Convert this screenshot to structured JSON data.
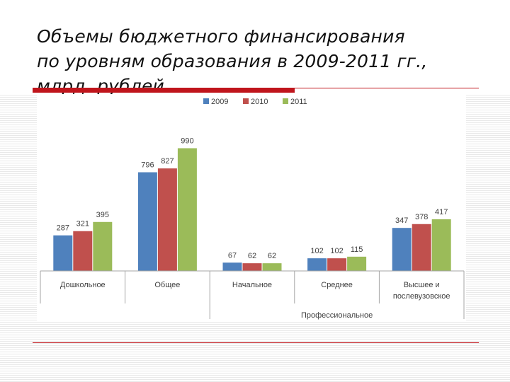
{
  "slide": {
    "title_lines": [
      "Объемы бюджетного финансирования",
      "по уровням образования в 2009-2011 гг.,",
      "млрд. рублей"
    ]
  },
  "chart_data": {
    "type": "bar",
    "categories": [
      "Дошкольное",
      "Общее",
      "Начальное",
      "Среднее",
      "Высшее и послевузовское"
    ],
    "category_label_lines": [
      [
        "Дошкольное"
      ],
      [
        "Общее"
      ],
      [
        "Начальное"
      ],
      [
        "Среднее"
      ],
      [
        "Высшее и",
        "послевузовское"
      ]
    ],
    "group_label": "Профессиональное",
    "group_span": [
      "Начальное",
      "Высшее и послевузовское"
    ],
    "series": [
      {
        "name": "2009",
        "color": "#4f81bd",
        "values": [
          287,
          796,
          67,
          102,
          347
        ]
      },
      {
        "name": "2010",
        "color": "#c0504d",
        "values": [
          321,
          827,
          62,
          102,
          378
        ]
      },
      {
        "name": "2011",
        "color": "#9bbb59",
        "values": [
          395,
          990,
          62,
          115,
          417
        ]
      }
    ],
    "ylim": [
      0,
      1050
    ],
    "legend_position": "top-center",
    "grid": false
  }
}
